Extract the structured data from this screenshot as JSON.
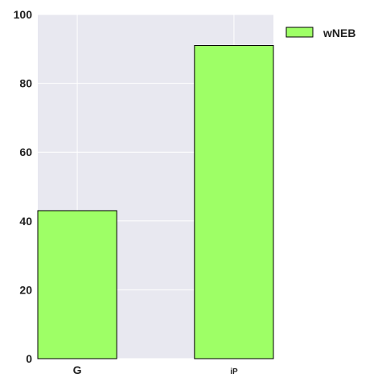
{
  "chart_data": {
    "type": "bar",
    "categories": [
      "G",
      "iP"
    ],
    "series": [
      {
        "name": "wNEB",
        "values": [
          43,
          91
        ]
      }
    ],
    "ylim": [
      0,
      100
    ],
    "yticks": [
      0,
      20,
      40,
      60,
      80,
      100
    ],
    "title": "",
    "xlabel": "",
    "ylabel": "",
    "grid": true,
    "legend_position": "outside-top-right",
    "colors": {
      "bar_fill": "#9eff66",
      "bar_edge": "#000000",
      "plot_bg": "#e8e8f0",
      "grid": "#ffffff",
      "text": "#222222"
    }
  }
}
